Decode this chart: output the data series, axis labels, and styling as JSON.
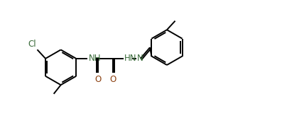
{
  "bg_color": "#ffffff",
  "line_color": "#000000",
  "bond_lw": 1.4,
  "font_size": 8.5,
  "label_Cl": "Cl",
  "label_NH": "NH",
  "label_HN": "HN",
  "label_N": "N",
  "label_O1": "O",
  "label_O2": "O",
  "label_CH3_left": "",
  "label_CH3_right": "",
  "n_color": "#3a6b3a",
  "o_color": "#8b4010",
  "cl_color": "#3a6b3a",
  "text_color": "#000000",
  "xlim": [
    0,
    10
  ],
  "ylim": [
    -2.5,
    3.0
  ],
  "figw": 3.97,
  "figh": 1.84,
  "dpi": 100
}
